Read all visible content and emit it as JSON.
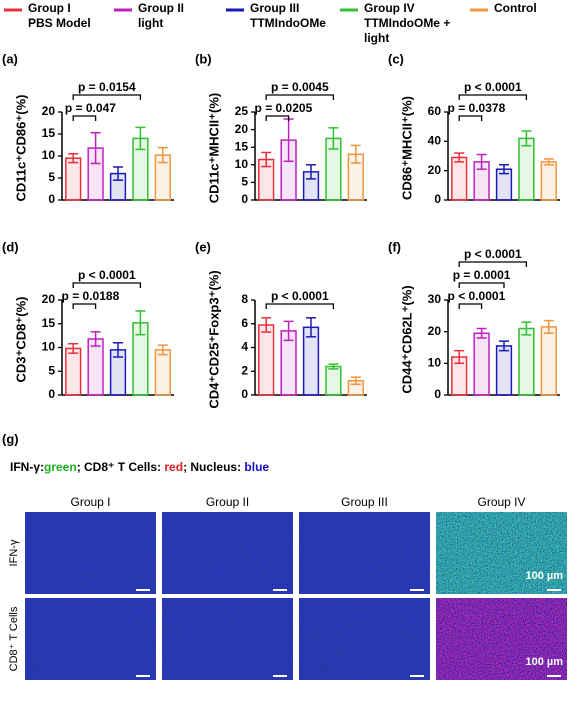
{
  "legend": [
    {
      "lines": [
        "Group I",
        "PBS Model"
      ],
      "color": "#e8303a"
    },
    {
      "lines": [
        "Group II",
        "light"
      ],
      "color": "#c020c0"
    },
    {
      "lines": [
        "Group III",
        "TTMIndoOMe"
      ],
      "color": "#1a1ab8"
    },
    {
      "lines": [
        "Group IV",
        "TTMIndoOMe +",
        "light"
      ],
      "color": "#30c030"
    },
    {
      "lines": [
        "Control"
      ],
      "color": "#f0963c"
    }
  ],
  "chart_data": [
    {
      "type": "bar",
      "panel": "(a)",
      "ylabel": "CD11c⁺CD86⁺(%)",
      "categories": [
        null,
        null,
        null,
        null,
        null
      ],
      "values": [
        9.5,
        11.8,
        6,
        14,
        10.2
      ],
      "errors": [
        1,
        3.5,
        1.5,
        2.5,
        1.7
      ],
      "colors": [
        "#e8303a",
        "#c020c0",
        "#1a1ab8",
        "#30c030",
        "#f0963c"
      ],
      "ylim": [
        0,
        20
      ],
      "yticks": [
        0,
        5,
        10,
        15,
        20
      ],
      "annotations": [
        {
          "label": "p = 0.047",
          "from": 0,
          "to": 1
        },
        {
          "label": "p = 0.0154",
          "from": 0,
          "to": 3
        }
      ]
    },
    {
      "type": "bar",
      "panel": "(b)",
      "ylabel": "CD11c⁺MHCII⁺(%)",
      "categories": [
        null,
        null,
        null,
        null,
        null
      ],
      "values": [
        11.5,
        17,
        8,
        17.5,
        13
      ],
      "errors": [
        2,
        6,
        2,
        3,
        2.5
      ],
      "colors": [
        "#e8303a",
        "#c020c0",
        "#1a1ab8",
        "#30c030",
        "#f0963c"
      ],
      "ylim": [
        0,
        25
      ],
      "yticks": [
        0,
        5,
        10,
        15,
        20,
        25
      ],
      "annotations": [
        {
          "label": "p = 0.0205",
          "from": 0,
          "to": 1
        },
        {
          "label": "p = 0.0045",
          "from": 0,
          "to": 3
        }
      ]
    },
    {
      "type": "bar",
      "panel": "(c)",
      "ylabel": "CD86⁺MHCII⁺(%)",
      "categories": [
        null,
        null,
        null,
        null,
        null
      ],
      "values": [
        29,
        26,
        21,
        42,
        26
      ],
      "errors": [
        3,
        5,
        3,
        5,
        2
      ],
      "colors": [
        "#e8303a",
        "#c020c0",
        "#1a1ab8",
        "#30c030",
        "#f0963c"
      ],
      "ylim": [
        0,
        60
      ],
      "yticks": [
        0,
        20,
        40,
        60
      ],
      "annotations": [
        {
          "label": "p = 0.0378",
          "from": 0,
          "to": 1
        },
        {
          "label": "p < 0.0001",
          "from": 0,
          "to": 3
        }
      ]
    },
    {
      "type": "bar",
      "panel": "(d)",
      "ylabel": "CD3⁺CD8⁺(%)",
      "categories": [
        null,
        null,
        null,
        null,
        null
      ],
      "values": [
        9.8,
        11.8,
        9.5,
        15.2,
        9.5
      ],
      "errors": [
        1,
        1.5,
        1.5,
        2.5,
        1
      ],
      "colors": [
        "#e8303a",
        "#c020c0",
        "#1a1ab8",
        "#30c030",
        "#f0963c"
      ],
      "ylim": [
        0,
        20
      ],
      "yticks": [
        0,
        5,
        10,
        15,
        20
      ],
      "annotations": [
        {
          "label": "p = 0.0188",
          "from": 0,
          "to": 1
        },
        {
          "label": "p < 0.0001",
          "from": 0,
          "to": 3
        }
      ]
    },
    {
      "type": "bar",
      "panel": "(e)",
      "ylabel": "CD4⁺CD25⁺Foxp3⁺(%)",
      "categories": [
        null,
        null,
        null,
        null,
        null
      ],
      "values": [
        5.9,
        5.4,
        5.7,
        2.4,
        1.2
      ],
      "errors": [
        0.6,
        0.8,
        0.8,
        0.2,
        0.3
      ],
      "colors": [
        "#e8303a",
        "#c020c0",
        "#1a1ab8",
        "#30c030",
        "#f0963c"
      ],
      "ylim": [
        0,
        8
      ],
      "yticks": [
        0,
        2,
        4,
        6,
        8
      ],
      "annotations": [
        {
          "label": "p < 0.0001",
          "from": 0,
          "to": 3
        }
      ]
    },
    {
      "type": "bar",
      "panel": "(f)",
      "ylabel": "CD44⁺CD62L⁺(%)",
      "categories": [
        null,
        null,
        null,
        null,
        null
      ],
      "values": [
        12,
        19.5,
        15.5,
        21,
        21.5
      ],
      "errors": [
        2,
        1.5,
        1.5,
        2,
        2
      ],
      "colors": [
        "#e8303a",
        "#c020c0",
        "#1a1ab8",
        "#30c030",
        "#f0963c"
      ],
      "ylim": [
        0,
        30
      ],
      "yticks": [
        0,
        10,
        20,
        30
      ],
      "annotations": [
        {
          "label": "p < 0.0001",
          "from": 0,
          "to": 1
        },
        {
          "label": "p = 0.0001",
          "from": 0,
          "to": 2
        },
        {
          "label": "p < 0.0001",
          "from": 0,
          "to": 3
        }
      ]
    }
  ],
  "panel_g": {
    "panel": "(g)",
    "caption": [
      {
        "text": "IFN-γ:",
        "color": "#000000"
      },
      {
        "text": "green",
        "color": "#20b020"
      },
      {
        "text": "; CD8⁺ T Cells: ",
        "color": "#000000"
      },
      {
        "text": "red",
        "color": "#e02020"
      },
      {
        "text": "; Nucleus: ",
        "color": "#000000"
      },
      {
        "text": "blue",
        "color": "#1010c0"
      }
    ],
    "columns": [
      "Group I",
      "Group II",
      "Group III",
      "Group IV"
    ],
    "rows": [
      "IFN-γ",
      "CD8⁺ T Cells"
    ],
    "scale": "100 µm"
  }
}
